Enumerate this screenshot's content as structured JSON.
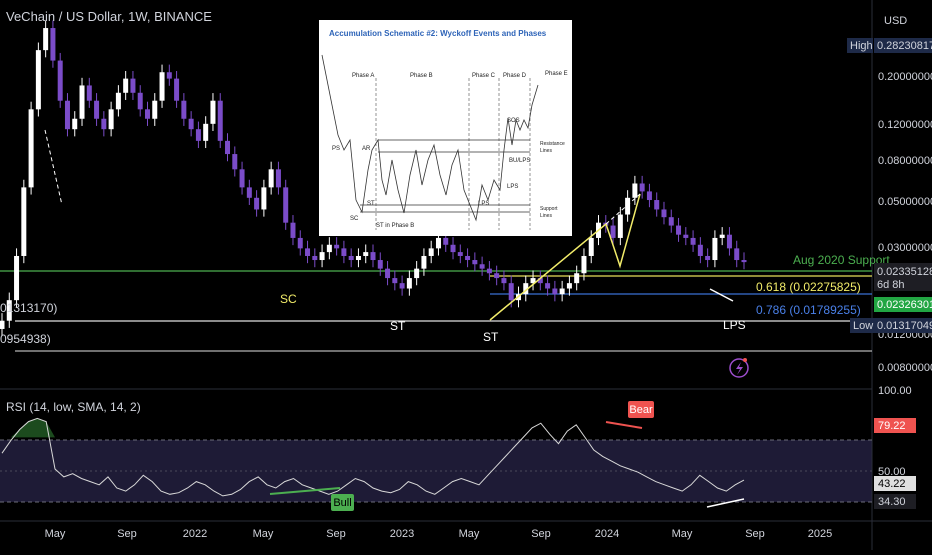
{
  "header": {
    "title": "VeChain / US Dollar, 1W, BINANCE",
    "currency": "USD"
  },
  "price_axis": {
    "labels": [
      "0.20000000",
      "0.12000000",
      "0.08000000",
      "0.05000000",
      "0.03000000",
      "0.01200000",
      "0.00800000"
    ],
    "high_label": "High",
    "high_value": "0.28230817",
    "low_label": "Low",
    "low_value": "0.01317049",
    "current_value": "0.02335128",
    "countdown": "6d 8h",
    "green_value": "0.02326301"
  },
  "left_partial_labels": [
    "01313170)",
    "0954938)"
  ],
  "annotations": {
    "support_label": "Aug 2020 Support",
    "fib_618": "0.618 (0.02275825)",
    "fib_786": "0.786 (0.01789255)",
    "sc": "SC",
    "st1": "ST",
    "st2": "ST",
    "lps": "LPS"
  },
  "inset": {
    "title": "Accumulation Schematic #2: Wyckoff Events and Phases",
    "phases": [
      "Phase A",
      "Phase B",
      "Phase C",
      "Phase D",
      "Phase E"
    ],
    "events": [
      "PS",
      "AR",
      "SC",
      "ST",
      "ST in Phase B",
      "LPS",
      "SOS",
      "BU/LPS",
      "LPS"
    ],
    "resistance": [
      "Resistance",
      "Lines"
    ],
    "support": [
      "Support",
      "Lines"
    ]
  },
  "rsi": {
    "title": "RSI (14, low, SMA, 14, 2)",
    "axis_labels": [
      "100.00",
      "50.00"
    ],
    "tag_79": "79.22",
    "tag_43": "43.22",
    "tag_34": "34.30",
    "bear_label": "Bear",
    "bull_label": "Bull"
  },
  "time_axis": [
    "May",
    "Sep",
    "2022",
    "May",
    "Sep",
    "2023",
    "May",
    "Sep",
    "2024",
    "May",
    "Sep",
    "2025"
  ],
  "chart_data": {
    "type": "candlestick",
    "title": "VeChain / US Dollar, 1W, BINANCE",
    "y_scale": "log",
    "ylim": [
      0.007,
      0.3
    ],
    "x_ticks": [
      "May",
      "Sep",
      "2022",
      "May",
      "Sep",
      "2023",
      "May",
      "Sep",
      "2024",
      "May",
      "Sep",
      "2025"
    ],
    "key_levels": [
      {
        "label": "Aug 2020 Support",
        "value": 0.0233
      },
      {
        "label": "0.618",
        "value": 0.02275825
      },
      {
        "label": "0.786",
        "value": 0.01789255
      },
      {
        "label": "Low",
        "value": 0.01317049
      },
      {
        "label": "High",
        "value": 0.28230817
      }
    ],
    "weekly_close_approx": [
      0.013,
      0.016,
      0.025,
      0.05,
      0.11,
      0.2,
      0.25,
      0.18,
      0.12,
      0.09,
      0.1,
      0.14,
      0.12,
      0.1,
      0.09,
      0.11,
      0.13,
      0.15,
      0.13,
      0.11,
      0.1,
      0.12,
      0.16,
      0.15,
      0.12,
      0.1,
      0.09,
      0.08,
      0.095,
      0.12,
      0.08,
      0.07,
      0.06,
      0.05,
      0.045,
      0.04,
      0.05,
      0.06,
      0.05,
      0.035,
      0.03,
      0.027,
      0.025,
      0.024,
      0.026,
      0.028,
      0.027,
      0.025,
      0.024,
      0.025,
      0.026,
      0.024,
      0.022,
      0.02,
      0.019,
      0.018,
      0.02,
      0.022,
      0.025,
      0.027,
      0.03,
      0.028,
      0.026,
      0.025,
      0.024,
      0.023,
      0.022,
      0.021,
      0.02,
      0.019,
      0.016,
      0.017,
      0.019,
      0.02,
      0.019,
      0.018,
      0.017,
      0.018,
      0.019,
      0.021,
      0.025,
      0.03,
      0.035,
      0.034,
      0.03,
      0.038,
      0.045,
      0.052,
      0.048,
      0.044,
      0.04,
      0.037,
      0.034,
      0.031,
      0.03,
      0.028,
      0.025,
      0.024,
      0.03,
      0.031,
      0.027,
      0.024,
      0.0235
    ],
    "rsi_values_approx": [
      60,
      68,
      75,
      80,
      82,
      80,
      50,
      45,
      47,
      44,
      42,
      40,
      45,
      38,
      36,
      40,
      46,
      42,
      36,
      34,
      35,
      38,
      42,
      40,
      36,
      33,
      34,
      37,
      42,
      45,
      40,
      38,
      42,
      44,
      40,
      38,
      36,
      34,
      36,
      40,
      44,
      42,
      38,
      36,
      35,
      37,
      42,
      40,
      36,
      34,
      38,
      42,
      44,
      42,
      40,
      46,
      52,
      58,
      64,
      70,
      76,
      79,
      72,
      66,
      74,
      78,
      70,
      62,
      58,
      55,
      52,
      50,
      48,
      45,
      42,
      40,
      38,
      36,
      40,
      46,
      42,
      38,
      36,
      40,
      43
    ]
  }
}
